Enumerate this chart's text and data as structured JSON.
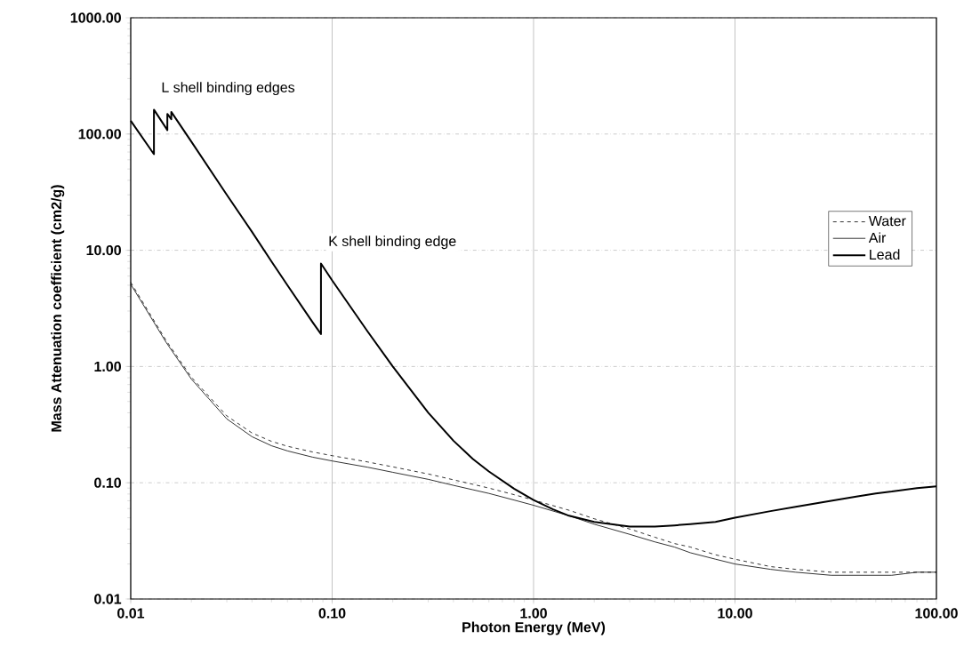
{
  "chart_data": {
    "type": "line",
    "xlabel": "Photon Energy (MeV)",
    "ylabel": "Mass Attenuation coefficient (cm2/g)",
    "log": "xy",
    "grid": true,
    "legend": "right",
    "marker": "none",
    "xlim": [
      0.01,
      100
    ],
    "ylim": [
      0.01,
      1000
    ],
    "xticks": [
      {
        "value": 0.01,
        "label": "0.01"
      },
      {
        "value": 0.1,
        "label": "0.10"
      },
      {
        "value": 1,
        "label": "1.00"
      },
      {
        "value": 10,
        "label": "10.00"
      },
      {
        "value": 100,
        "label": "100.00"
      }
    ],
    "yticks": [
      {
        "value": 0.01,
        "label": "0.01"
      },
      {
        "value": 0.1,
        "label": "0.10"
      },
      {
        "value": 1,
        "label": "1.00"
      },
      {
        "value": 10,
        "label": "10.00"
      },
      {
        "value": 100,
        "label": "100.00"
      },
      {
        "value": 1000,
        "label": "1000.00"
      }
    ],
    "series": [
      {
        "name": "Water",
        "color": "#000000",
        "line_style": "dashed",
        "x": [
          0.01,
          0.015,
          0.02,
          0.03,
          0.04,
          0.05,
          0.06,
          0.08,
          0.1,
          0.15,
          0.2,
          0.3,
          0.4,
          0.5,
          0.6,
          0.8,
          1,
          1.5,
          2,
          3,
          4,
          5,
          6,
          8,
          10,
          15,
          20,
          30,
          40,
          50,
          60,
          80,
          100
        ],
        "values": [
          5.3,
          1.67,
          0.81,
          0.376,
          0.268,
          0.227,
          0.206,
          0.184,
          0.171,
          0.151,
          0.137,
          0.119,
          0.106,
          0.097,
          0.09,
          0.079,
          0.071,
          0.058,
          0.049,
          0.04,
          0.034,
          0.03,
          0.028,
          0.024,
          0.022,
          0.019,
          0.018,
          0.017,
          0.017,
          0.017,
          0.017,
          0.017,
          0.017
        ]
      },
      {
        "name": "Air",
        "color": "#000000",
        "line_style": "solid",
        "x": [
          0.01,
          0.015,
          0.02,
          0.03,
          0.04,
          0.05,
          0.06,
          0.08,
          0.1,
          0.15,
          0.2,
          0.3,
          0.4,
          0.5,
          0.6,
          0.8,
          1,
          1.5,
          2,
          3,
          4,
          5,
          6,
          8,
          10,
          15,
          20,
          30,
          40,
          50,
          60,
          80,
          100
        ],
        "values": [
          5.1,
          1.61,
          0.78,
          0.354,
          0.249,
          0.208,
          0.188,
          0.166,
          0.154,
          0.136,
          0.123,
          0.107,
          0.095,
          0.087,
          0.081,
          0.071,
          0.064,
          0.052,
          0.044,
          0.036,
          0.031,
          0.028,
          0.025,
          0.022,
          0.02,
          0.018,
          0.017,
          0.016,
          0.016,
          0.016,
          0.016,
          0.017,
          0.017
        ]
      },
      {
        "name": "Lead",
        "color": "#000000",
        "line_style": "solid",
        "x": [
          0.01,
          0.01304,
          0.01304,
          0.015,
          0.0152,
          0.0152,
          0.0159,
          0.0159,
          0.02,
          0.03,
          0.04,
          0.05,
          0.06,
          0.08,
          0.088,
          0.088,
          0.1,
          0.15,
          0.2,
          0.3,
          0.4,
          0.5,
          0.6,
          0.8,
          1,
          1.25,
          1.5,
          2,
          3,
          4,
          5,
          6,
          8,
          10,
          15,
          20,
          30,
          40,
          50,
          60,
          80,
          100
        ],
        "values": [
          130,
          67,
          162,
          112,
          108,
          149,
          134,
          155,
          86,
          30,
          14.4,
          8.0,
          5.0,
          2.4,
          1.9,
          7.7,
          5.5,
          2.0,
          1.0,
          0.4,
          0.23,
          0.16,
          0.125,
          0.089,
          0.071,
          0.059,
          0.052,
          0.046,
          0.042,
          0.042,
          0.043,
          0.044,
          0.046,
          0.05,
          0.057,
          0.062,
          0.07,
          0.076,
          0.081,
          0.084,
          0.09,
          0.093
        ]
      }
    ],
    "annotations": [
      {
        "text": "L shell binding edges",
        "x": 0.01304,
        "y": 162
      },
      {
        "text": "K shell binding edge",
        "x": 0.088,
        "y": 7.7
      }
    ]
  }
}
